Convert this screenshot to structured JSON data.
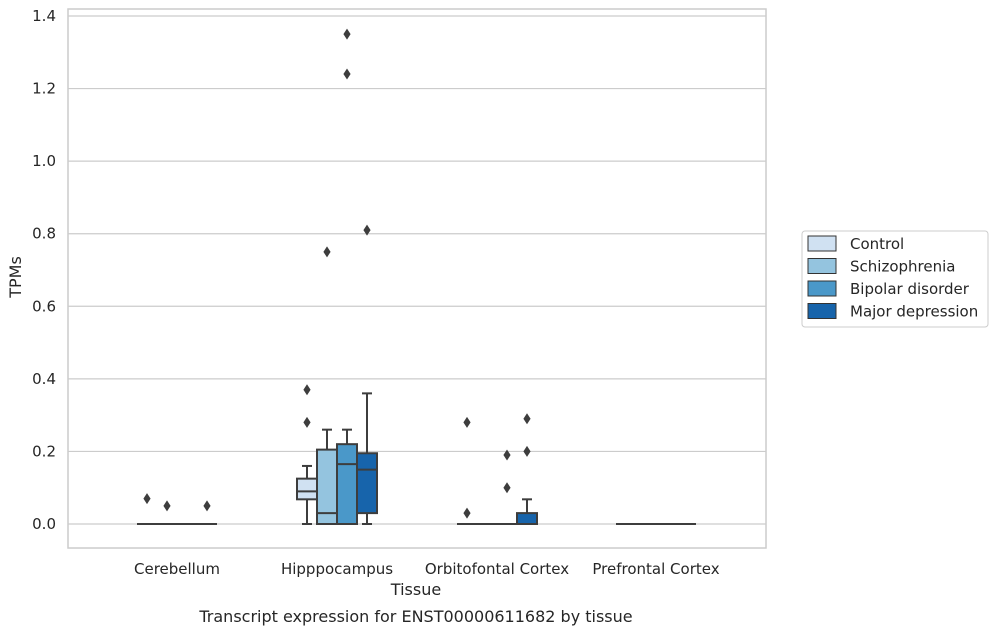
{
  "chart_data": {
    "type": "box",
    "title": "",
    "caption": "Transcript expression for ENST00000611682 by tissue",
    "xlabel": "Tissue",
    "ylabel": "TPMs",
    "ylim": [
      -0.065,
      1.42
    ],
    "yticks": [
      0.0,
      0.2,
      0.4,
      0.6,
      0.8,
      1.0,
      1.2,
      1.4
    ],
    "ytick_labels": [
      "0.0",
      "0.2",
      "0.4",
      "0.6",
      "0.8",
      "1.0",
      "1.2",
      "1.4"
    ],
    "grid": "horizontal",
    "legend_position": "right",
    "categories": [
      "Cerebellum",
      "Hipppocampus",
      "Orbitofontal Cortex",
      "Prefrontal Cortex"
    ],
    "series": [
      {
        "name": "Control",
        "color": "#d0e1f2",
        "boxes": [
          {
            "q1": 0,
            "median": 0,
            "q3": 0,
            "whisker_low": 0,
            "whisker_high": 0,
            "outliers": [
              0.07
            ]
          },
          {
            "q1": 0.068,
            "median": 0.09,
            "q3": 0.125,
            "whisker_low": 0,
            "whisker_high": 0.16,
            "outliers": [
              0.37,
              0.28
            ]
          },
          {
            "q1": 0,
            "median": 0,
            "q3": 0,
            "whisker_low": 0,
            "whisker_high": 0,
            "outliers": [
              0.28,
              0.03
            ]
          },
          {
            "q1": 0,
            "median": 0,
            "q3": 0,
            "whisker_low": 0,
            "whisker_high": 0,
            "outliers": []
          }
        ]
      },
      {
        "name": "Schizophrenia",
        "color": "#94c4df",
        "boxes": [
          {
            "q1": 0,
            "median": 0,
            "q3": 0,
            "whisker_low": 0,
            "whisker_high": 0,
            "outliers": [
              0.05
            ]
          },
          {
            "q1": 0,
            "median": 0.03,
            "q3": 0.205,
            "whisker_low": 0,
            "whisker_high": 0.26,
            "outliers": [
              0.75
            ]
          },
          {
            "q1": 0,
            "median": 0,
            "q3": 0,
            "whisker_low": 0,
            "whisker_high": 0,
            "outliers": []
          },
          {
            "q1": 0,
            "median": 0,
            "q3": 0,
            "whisker_low": 0,
            "whisker_high": 0,
            "outliers": []
          }
        ]
      },
      {
        "name": "Bipolar disorder",
        "color": "#4a98c9",
        "boxes": [
          {
            "q1": 0,
            "median": 0,
            "q3": 0,
            "whisker_low": 0,
            "whisker_high": 0,
            "outliers": []
          },
          {
            "q1": 0,
            "median": 0.165,
            "q3": 0.22,
            "whisker_low": 0,
            "whisker_high": 0.26,
            "outliers": [
              1.35,
              1.24
            ]
          },
          {
            "q1": 0,
            "median": 0,
            "q3": 0,
            "whisker_low": 0,
            "whisker_high": 0,
            "outliers": [
              0.19,
              0.1
            ]
          },
          {
            "q1": 0,
            "median": 0,
            "q3": 0,
            "whisker_low": 0,
            "whisker_high": 0,
            "outliers": []
          }
        ]
      },
      {
        "name": "Major depression",
        "color": "#1764ab",
        "boxes": [
          {
            "q1": 0,
            "median": 0,
            "q3": 0,
            "whisker_low": 0,
            "whisker_high": 0,
            "outliers": [
              0.05
            ]
          },
          {
            "q1": 0.03,
            "median": 0.15,
            "q3": 0.195,
            "whisker_low": 0,
            "whisker_high": 0.36,
            "outliers": [
              0.81
            ]
          },
          {
            "q1": 0,
            "median": 0,
            "q3": 0.03,
            "whisker_low": 0,
            "whisker_high": 0.068,
            "outliers": [
              0.29,
              0.2
            ]
          },
          {
            "q1": 0,
            "median": 0,
            "q3": 0,
            "whisker_low": 0,
            "whisker_high": 0,
            "outliers": []
          }
        ]
      }
    ]
  }
}
